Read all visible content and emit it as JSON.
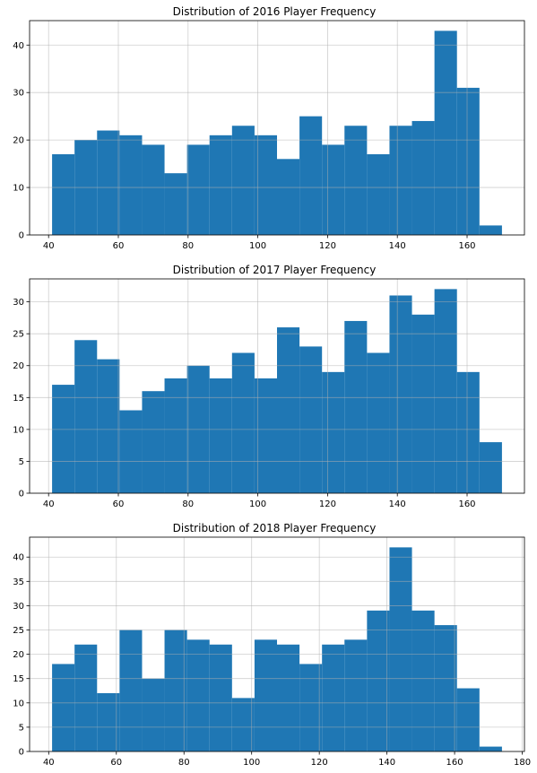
{
  "chart_data": [
    {
      "type": "bar",
      "title": "Distribution of 2016 Player Frequency",
      "xlabel": "",
      "ylabel": "",
      "bin_edges": [
        41,
        47.45,
        53.9,
        60.35,
        66.8,
        73.25,
        79.7,
        86.15,
        92.6,
        99.05,
        105.5,
        111.95,
        118.4,
        124.85,
        131.3,
        137.75,
        144.2,
        150.65,
        157.1,
        163.55,
        170
      ],
      "values": [
        17,
        20,
        22,
        21,
        19,
        13,
        19,
        21,
        23,
        21,
        16,
        25,
        19,
        23,
        17,
        23,
        24,
        43,
        31,
        2
      ],
      "xticks": [
        40,
        60,
        80,
        100,
        120,
        140,
        160
      ],
      "yticks": [
        0,
        10,
        20,
        30,
        40
      ],
      "xlim": [
        34.55,
        176.45
      ],
      "ylim": [
        0,
        45.15
      ],
      "grid": true,
      "color": "#1f77b4"
    },
    {
      "type": "bar",
      "title": "Distribution of 2017 Player Frequency",
      "xlabel": "",
      "ylabel": "",
      "bin_edges": [
        41,
        47.45,
        53.9,
        60.35,
        66.8,
        73.25,
        79.7,
        86.15,
        92.6,
        99.05,
        105.5,
        111.95,
        118.4,
        124.85,
        131.3,
        137.75,
        144.2,
        150.65,
        157.1,
        163.55,
        170
      ],
      "values": [
        17,
        24,
        21,
        13,
        16,
        18,
        20,
        18,
        22,
        18,
        26,
        23,
        19,
        27,
        22,
        31,
        28,
        32,
        19,
        8
      ],
      "xticks": [
        40,
        60,
        80,
        100,
        120,
        140,
        160
      ],
      "yticks": [
        0,
        5,
        10,
        15,
        20,
        25,
        30
      ],
      "xlim": [
        34.55,
        176.45
      ],
      "ylim": [
        0,
        33.6
      ],
      "grid": true,
      "color": "#1f77b4"
    },
    {
      "type": "bar",
      "title": "Distribution of 2018 Player Frequency",
      "xlabel": "",
      "ylabel": "",
      "bin_edges": [
        41,
        47.65,
        54.3,
        60.95,
        67.6,
        74.25,
        80.9,
        87.55,
        94.2,
        100.85,
        107.5,
        114.15,
        120.8,
        127.45,
        134.1,
        140.75,
        147.4,
        154.05,
        160.7,
        167.35,
        174
      ],
      "values": [
        18,
        22,
        12,
        25,
        15,
        25,
        23,
        22,
        11,
        23,
        22,
        18,
        22,
        23,
        29,
        42,
        29,
        26,
        13,
        1
      ],
      "xticks": [
        40,
        60,
        80,
        100,
        120,
        140,
        160,
        180
      ],
      "yticks": [
        0,
        5,
        10,
        15,
        20,
        25,
        30,
        35,
        40
      ],
      "xlim": [
        34.35,
        180.65
      ],
      "ylim": [
        0,
        44.1
      ],
      "grid": true,
      "color": "#1f77b4"
    }
  ]
}
